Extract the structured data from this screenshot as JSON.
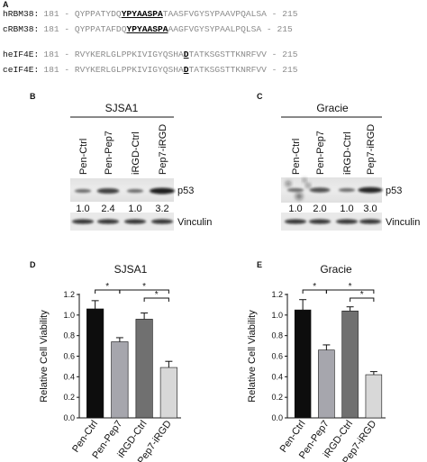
{
  "panel_a": {
    "label": "A",
    "rows": [
      {
        "name": "hRBM38:",
        "start": "181",
        "pre": "QYPPATYDQ",
        "motif": "YPYAASPA",
        "post": "TAASFVGYSYPAAVPQALSA",
        "end": "215"
      },
      {
        "name": "cRBM38:",
        "start": "181",
        "pre": "QYPPATAFDQ",
        "motif": "YPYAASPA",
        "post": "AAGFVGYSYPAALPQLSA",
        "end": "215"
      },
      {
        "name": "heIF4E:",
        "start": "181",
        "pre": "RVYKERLGLPPKIVIGYQSHA",
        "motif": "D",
        "post": "TATKSGSTTKNRFVV",
        "end": "215"
      },
      {
        "name": "ceIF4E:",
        "start": "181",
        "pre": "RVYKERLGLPPKIVIGYQSHA",
        "motif": "D",
        "post": "TATKSGSTTKNRFVV",
        "end": "215"
      }
    ]
  },
  "panel_b": {
    "label": "B",
    "title": "SJSA1",
    "lanes": [
      "Pen-Ctrl",
      "Pen-Pep7",
      "iRGD-Ctrl",
      "Pep7-iRGD"
    ],
    "target": "p53",
    "loading": "Vinculin",
    "quant": [
      "1.0",
      "2.4",
      "1.0",
      "3.2"
    ]
  },
  "panel_c": {
    "label": "C",
    "title": "Gracie",
    "lanes": [
      "Pen-Ctrl",
      "Pen-Pep7",
      "iRGD-Ctrl",
      "Pep7-iRGD"
    ],
    "target": "p53",
    "loading": "Vinculin",
    "quant": [
      "1.0",
      "2.0",
      "1.0",
      "3.0"
    ]
  },
  "colors": {
    "bar_fills": [
      "#0d0d0d",
      "#a6a6ad",
      "#707070",
      "#d8d8d8"
    ]
  },
  "chart_data": [
    {
      "type": "bar",
      "panel_label": "D",
      "title": "SJSA1",
      "categories": [
        "Pen-Ctrl",
        "Pen-Pep7",
        "iRGD-Ctrl",
        "Pep7-iRGD"
      ],
      "values": [
        1.06,
        0.74,
        0.96,
        0.49
      ],
      "errors": [
        0.08,
        0.04,
        0.06,
        0.06
      ],
      "ylabel": "Relative Cell Viability",
      "ylim": [
        0.0,
        1.2
      ],
      "yticks": [
        "0.0",
        "0.2",
        "0.4",
        "0.6",
        "0.8",
        "1.0",
        "1.2"
      ],
      "significance": [
        {
          "from": 0,
          "to": 1,
          "label": "*"
        },
        {
          "from": 1,
          "to": 3,
          "label": "*"
        },
        {
          "from": 2,
          "to": 3,
          "label": "*"
        }
      ]
    },
    {
      "type": "bar",
      "panel_label": "E",
      "title": "Gracie",
      "categories": [
        "Pen-Ctrl",
        "Pen-Pep7",
        "iRGD-Ctrl",
        "Pep7-iRGD"
      ],
      "values": [
        1.05,
        0.66,
        1.04,
        0.42
      ],
      "errors": [
        0.1,
        0.05,
        0.04,
        0.03
      ],
      "ylabel": "Relative Cell Viability",
      "ylim": [
        0.0,
        1.2
      ],
      "yticks": [
        "0.0",
        "0.2",
        "0.4",
        "0.6",
        "0.8",
        "1.0",
        "1.2"
      ],
      "significance": [
        {
          "from": 0,
          "to": 1,
          "label": "*"
        },
        {
          "from": 1,
          "to": 3,
          "label": "*"
        },
        {
          "from": 2,
          "to": 3,
          "label": "*"
        }
      ]
    }
  ]
}
